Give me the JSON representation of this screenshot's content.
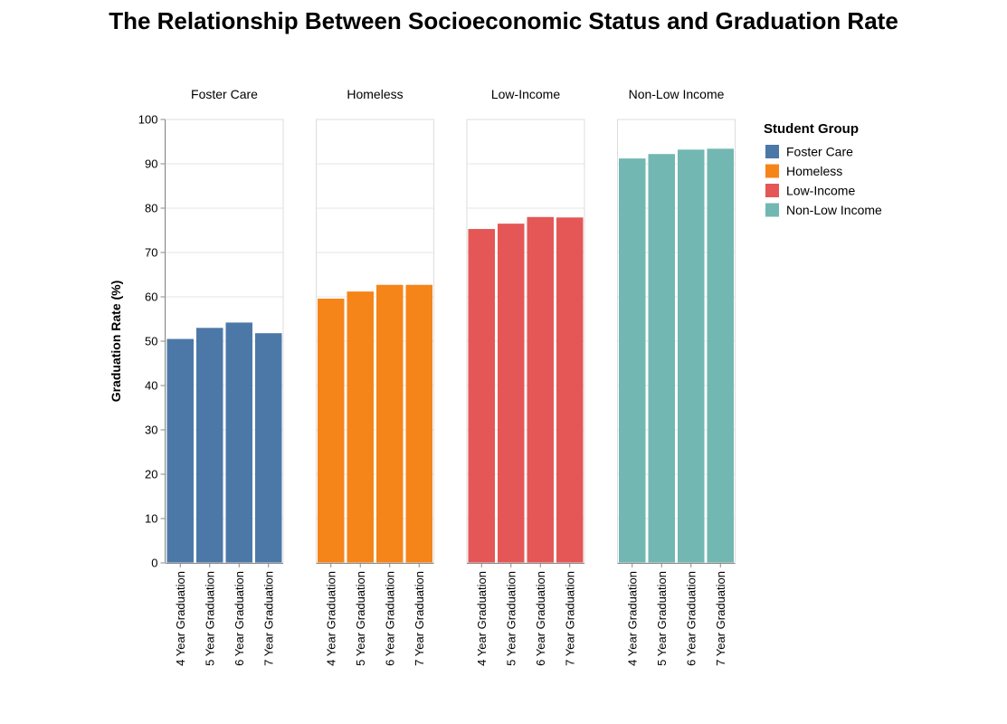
{
  "chart_data": {
    "type": "bar",
    "title": "The Relationship Between Socioeconomic Status and Graduation Rate",
    "ylabel": "Graduation Rate (%)",
    "xlabel": "",
    "ylim": [
      0,
      100
    ],
    "yticks": [
      0,
      10,
      20,
      30,
      40,
      50,
      60,
      70,
      80,
      90,
      100
    ],
    "grid": true,
    "legend_position": "right",
    "legend_title": "Student Group",
    "categories": [
      "4 Year Graduation",
      "5 Year Graduation",
      "6 Year Graduation",
      "7 Year Graduation"
    ],
    "series": [
      {
        "name": "Foster Care",
        "color": "#4c78a8",
        "values": [
          50.5,
          53.0,
          54.2,
          51.8
        ]
      },
      {
        "name": "Homeless",
        "color": "#f58518",
        "values": [
          59.6,
          61.2,
          62.7,
          62.7
        ]
      },
      {
        "name": "Low-Income",
        "color": "#e45756",
        "values": [
          75.3,
          76.5,
          78.0,
          77.9
        ]
      },
      {
        "name": "Non-Low Income",
        "color": "#72b7b2",
        "values": [
          91.2,
          92.2,
          93.2,
          93.4
        ]
      }
    ]
  }
}
